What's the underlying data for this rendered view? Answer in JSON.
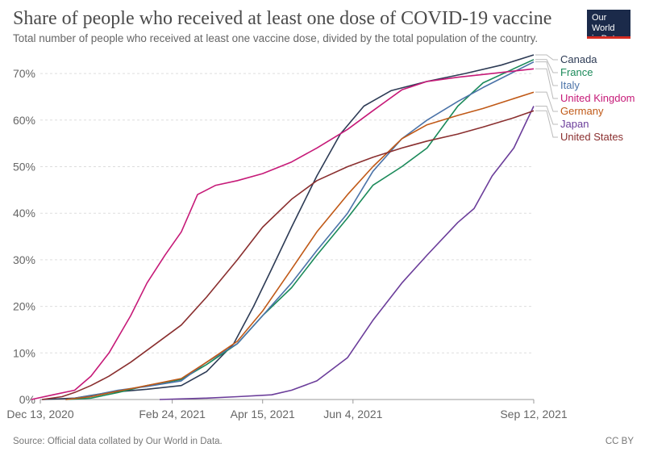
{
  "header": {
    "title": "Share of people who received at least one dose of COVID-19 vaccine",
    "subtitle": "Total number of people who received at least one vaccine dose, divided by the total population of the country."
  },
  "logo": {
    "line1": "Our World",
    "line2": "in Data"
  },
  "footer": {
    "source": "Source: Official data collated by Our World in Data.",
    "license": "CC BY"
  },
  "chart_data": {
    "type": "line",
    "y_unit": "%",
    "ylim": [
      0,
      74
    ],
    "y_ticks": [
      0,
      10,
      20,
      30,
      40,
      50,
      60,
      70
    ],
    "y_tick_labels": [
      "0%",
      "10%",
      "20%",
      "30%",
      "40%",
      "50%",
      "60%",
      "70%"
    ],
    "x_range": [
      "2020-12-13",
      "2021-09-12"
    ],
    "x_ticks": [
      "2020-12-13",
      "2021-02-24",
      "2021-04-15",
      "2021-06-04",
      "2021-09-12"
    ],
    "x_tick_labels": [
      "Dec 13, 2020",
      "Feb 24, 2021",
      "Apr 15, 2021",
      "Jun 4, 2021",
      "Sep 12, 2021"
    ],
    "grid": "horizontal dashed",
    "legend": "right, labels at line ends",
    "series": [
      {
        "name": "Canada",
        "color": "#2d3b55",
        "points": [
          [
            "2020-12-14",
            0
          ],
          [
            "2021-01-01",
            0.3
          ],
          [
            "2021-01-20",
            1.5
          ],
          [
            "2021-02-10",
            2.2
          ],
          [
            "2021-03-01",
            3
          ],
          [
            "2021-03-15",
            6
          ],
          [
            "2021-03-30",
            12
          ],
          [
            "2021-04-10",
            20
          ],
          [
            "2021-04-20",
            28
          ],
          [
            "2021-05-01",
            37
          ],
          [
            "2021-05-15",
            48
          ],
          [
            "2021-05-28",
            57
          ],
          [
            "2021-06-10",
            63
          ],
          [
            "2021-06-25",
            66.3
          ],
          [
            "2021-07-15",
            68.3
          ],
          [
            "2021-08-05",
            70
          ],
          [
            "2021-08-25",
            71.8
          ],
          [
            "2021-09-12",
            74
          ]
        ]
      },
      {
        "name": "France",
        "color": "#1b8a5a",
        "points": [
          [
            "2020-12-27",
            0
          ],
          [
            "2021-01-10",
            0.3
          ],
          [
            "2021-01-25",
            1.5
          ],
          [
            "2021-02-10",
            3
          ],
          [
            "2021-03-01",
            4.3
          ],
          [
            "2021-03-15",
            7.5
          ],
          [
            "2021-04-01",
            12
          ],
          [
            "2021-04-15",
            18
          ],
          [
            "2021-05-01",
            24
          ],
          [
            "2021-05-15",
            31
          ],
          [
            "2021-06-01",
            39
          ],
          [
            "2021-06-15",
            46
          ],
          [
            "2021-07-01",
            50
          ],
          [
            "2021-07-15",
            54
          ],
          [
            "2021-08-01",
            63
          ],
          [
            "2021-08-15",
            68
          ],
          [
            "2021-09-12",
            73
          ]
        ]
      },
      {
        "name": "Italy",
        "color": "#4b73a8",
        "points": [
          [
            "2020-12-27",
            0
          ],
          [
            "2021-01-10",
            0.8
          ],
          [
            "2021-01-25",
            2
          ],
          [
            "2021-02-10",
            2.8
          ],
          [
            "2021-03-01",
            4
          ],
          [
            "2021-03-15",
            8
          ],
          [
            "2021-04-01",
            12
          ],
          [
            "2021-04-15",
            18
          ],
          [
            "2021-05-01",
            25
          ],
          [
            "2021-05-15",
            32
          ],
          [
            "2021-06-01",
            40
          ],
          [
            "2021-06-15",
            49
          ],
          [
            "2021-07-01",
            56
          ],
          [
            "2021-07-15",
            60
          ],
          [
            "2021-08-01",
            64
          ],
          [
            "2021-08-15",
            67
          ],
          [
            "2021-09-12",
            72.5
          ]
        ]
      },
      {
        "name": "United Kingdom",
        "color": "#c61a78",
        "points": [
          [
            "2020-12-08",
            0
          ],
          [
            "2020-12-20",
            1
          ],
          [
            "2021-01-01",
            2
          ],
          [
            "2021-01-10",
            5
          ],
          [
            "2021-01-20",
            10
          ],
          [
            "2021-02-01",
            18
          ],
          [
            "2021-02-10",
            25
          ],
          [
            "2021-02-20",
            31
          ],
          [
            "2021-03-01",
            36
          ],
          [
            "2021-03-10",
            44
          ],
          [
            "2021-03-20",
            46
          ],
          [
            "2021-04-01",
            47
          ],
          [
            "2021-04-15",
            48.5
          ],
          [
            "2021-05-01",
            51
          ],
          [
            "2021-05-15",
            54
          ],
          [
            "2021-06-01",
            58
          ],
          [
            "2021-06-15",
            62
          ],
          [
            "2021-07-01",
            66.5
          ],
          [
            "2021-07-15",
            68.3
          ],
          [
            "2021-08-01",
            69.2
          ],
          [
            "2021-08-20",
            70
          ],
          [
            "2021-09-12",
            71
          ]
        ]
      },
      {
        "name": "Germany",
        "color": "#c05917",
        "points": [
          [
            "2020-12-27",
            0
          ],
          [
            "2021-01-10",
            0.6
          ],
          [
            "2021-01-25",
            1.8
          ],
          [
            "2021-02-10",
            3
          ],
          [
            "2021-03-01",
            4.5
          ],
          [
            "2021-03-15",
            8
          ],
          [
            "2021-04-01",
            12.5
          ],
          [
            "2021-04-15",
            19
          ],
          [
            "2021-05-01",
            28
          ],
          [
            "2021-05-15",
            36
          ],
          [
            "2021-06-01",
            44
          ],
          [
            "2021-06-15",
            50
          ],
          [
            "2021-07-01",
            56
          ],
          [
            "2021-07-15",
            59
          ],
          [
            "2021-08-01",
            61
          ],
          [
            "2021-08-15",
            62.5
          ],
          [
            "2021-09-12",
            66
          ]
        ]
      },
      {
        "name": "Japan",
        "color": "#6b3d9a",
        "points": [
          [
            "2021-02-17",
            0
          ],
          [
            "2021-03-15",
            0.3
          ],
          [
            "2021-04-01",
            0.6
          ],
          [
            "2021-04-20",
            1
          ],
          [
            "2021-05-01",
            2
          ],
          [
            "2021-05-15",
            4
          ],
          [
            "2021-06-01",
            9
          ],
          [
            "2021-06-15",
            17
          ],
          [
            "2021-07-01",
            25
          ],
          [
            "2021-07-15",
            31
          ],
          [
            "2021-08-01",
            38
          ],
          [
            "2021-08-10",
            41
          ],
          [
            "2021-08-20",
            48
          ],
          [
            "2021-09-01",
            54
          ],
          [
            "2021-09-12",
            63
          ]
        ]
      },
      {
        "name": "United States",
        "color": "#8a2f2f",
        "points": [
          [
            "2020-12-14",
            0
          ],
          [
            "2020-12-25",
            0.6
          ],
          [
            "2021-01-01",
            1.5
          ],
          [
            "2021-01-10",
            3
          ],
          [
            "2021-01-20",
            5
          ],
          [
            "2021-02-01",
            8
          ],
          [
            "2021-02-15",
            12
          ],
          [
            "2021-03-01",
            16
          ],
          [
            "2021-03-15",
            22
          ],
          [
            "2021-04-01",
            30
          ],
          [
            "2021-04-15",
            37
          ],
          [
            "2021-05-01",
            43
          ],
          [
            "2021-05-15",
            47
          ],
          [
            "2021-06-01",
            50
          ],
          [
            "2021-06-15",
            52
          ],
          [
            "2021-07-01",
            54
          ],
          [
            "2021-07-15",
            55.5
          ],
          [
            "2021-08-01",
            57
          ],
          [
            "2021-08-15",
            58.5
          ],
          [
            "2021-09-01",
            60.5
          ],
          [
            "2021-09-12",
            62
          ]
        ]
      }
    ]
  }
}
